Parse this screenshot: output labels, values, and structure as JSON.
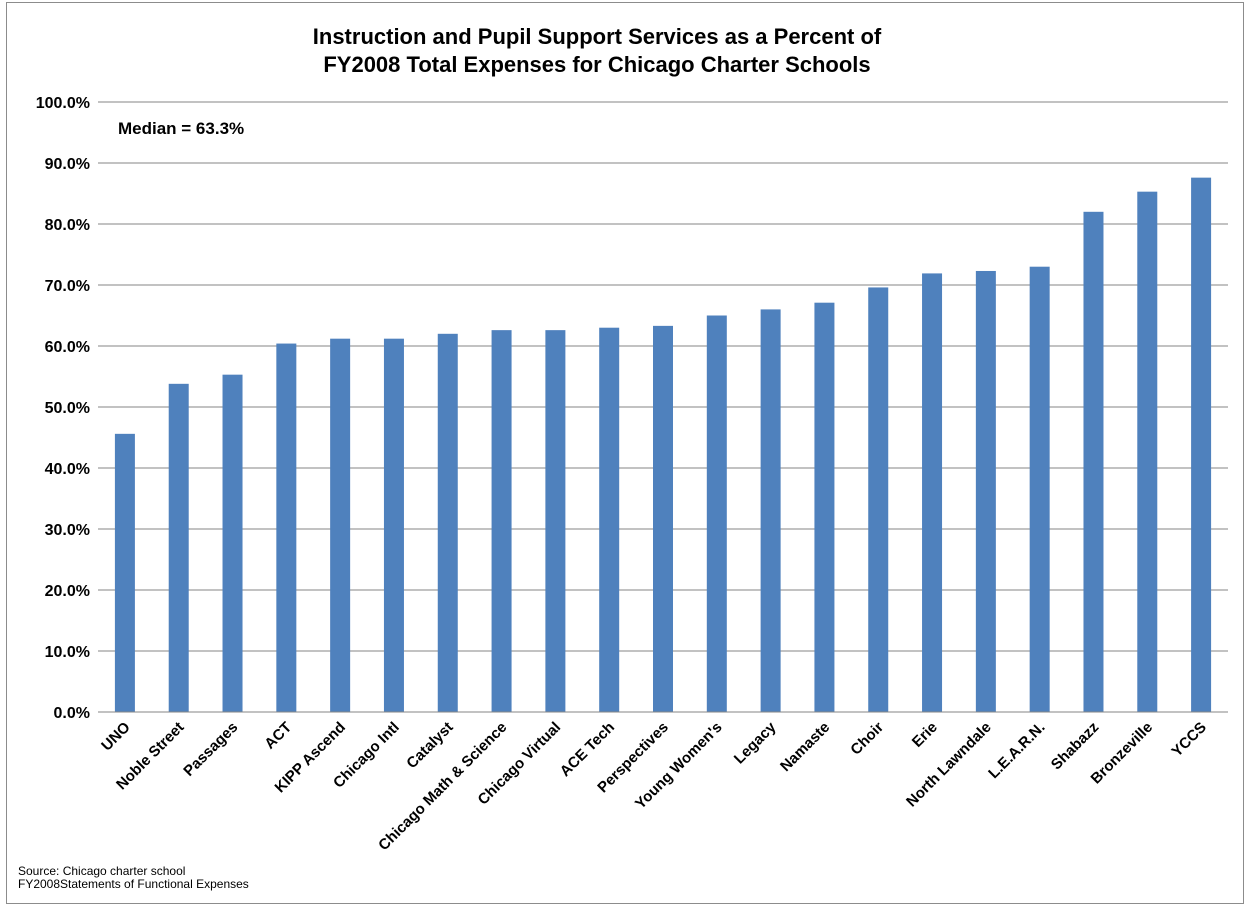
{
  "chart_data": {
    "type": "bar",
    "title": "Instruction and Pupil Support Services as a Percent of",
    "subtitle": "FY2008 Total Expenses for Chicago Charter Schools",
    "xlabel": "",
    "ylabel": "",
    "ylim": [
      0,
      100
    ],
    "y_ticks": [
      "0.0%",
      "10.0%",
      "20.0%",
      "30.0%",
      "40.0%",
      "50.0%",
      "60.0%",
      "70.0%",
      "80.0%",
      "90.0%",
      "100.0%"
    ],
    "grid": true,
    "bar_color": "#4F81BD",
    "categories": [
      "UNO",
      "Noble Street",
      "Passages",
      "ACT",
      "KIPP Ascend",
      "Chicago Intl",
      "Catalyst",
      "Chicago Math & Science",
      "Chicago Virtual",
      "ACE Tech",
      "Perspectives",
      "Young Women's",
      "Legacy",
      "Namaste",
      "Choir",
      "Erie",
      "North Lawndale",
      "L.E.A.R.N.",
      "Shabazz",
      "Bronzeville",
      "YCCS"
    ],
    "values": [
      45.6,
      53.8,
      55.3,
      60.4,
      61.2,
      61.2,
      62.0,
      62.6,
      62.6,
      63.0,
      63.3,
      65.0,
      66.0,
      67.1,
      69.6,
      71.9,
      72.3,
      73.0,
      82.0,
      85.3,
      87.6
    ],
    "annotation": "Median = 63.3%"
  },
  "source": {
    "line1": "Source: Chicago charter school",
    "line2": "FY2008Statements of Functional Expenses"
  }
}
